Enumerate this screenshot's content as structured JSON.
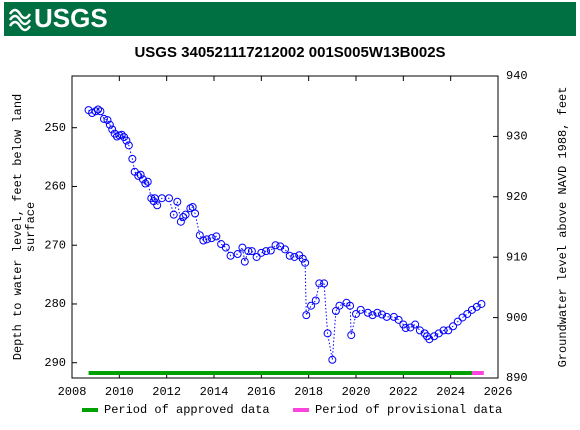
{
  "header": {
    "logo": "USGS"
  },
  "chart_data": {
    "type": "line",
    "title": "USGS 340521117212002 001S005W13B002S",
    "ylabel": [
      "Depth to water level, feet below land",
      "surface"
    ],
    "y2label": "Groundwater level above NAVD 1988, feet",
    "xlim": [
      2008,
      2026
    ],
    "xticks": [
      2008,
      2010,
      2012,
      2014,
      2016,
      2018,
      2020,
      2022,
      2024,
      2026
    ],
    "ylim": [
      241.2,
      292.6
    ],
    "y_inverted": true,
    "yticks": [
      250,
      260,
      270,
      280,
      290
    ],
    "y2lim": [
      890,
      940
    ],
    "y2ticks": [
      890,
      900,
      910,
      920,
      930,
      940
    ],
    "series": [
      {
        "name": "Depth to water level",
        "color": "#0000ff",
        "x": [
          2008.7,
          2008.85,
          2009.0,
          2009.1,
          2009.2,
          2009.35,
          2009.5,
          2009.6,
          2009.7,
          2009.8,
          2009.9,
          2010.0,
          2010.1,
          2010.2,
          2010.3,
          2010.4,
          2010.55,
          2010.65,
          2010.8,
          2010.9,
          2011.0,
          2011.1,
          2011.2,
          2011.35,
          2011.45,
          2011.5,
          2011.6,
          2011.8,
          2012.1,
          2012.3,
          2012.45,
          2012.6,
          2012.7,
          2012.8,
          2013.0,
          2013.1,
          2013.2,
          2013.4,
          2013.55,
          2013.7,
          2013.9,
          2014.1,
          2014.3,
          2014.5,
          2014.7,
          2015.0,
          2015.2,
          2015.3,
          2015.45,
          2015.6,
          2015.8,
          2016.0,
          2016.2,
          2016.4,
          2016.6,
          2016.8,
          2017.0,
          2017.2,
          2017.4,
          2017.6,
          2017.75,
          2017.85,
          2017.9,
          2018.1,
          2018.3,
          2018.45,
          2018.65,
          2018.8,
          2019.0,
          2019.15,
          2019.3,
          2019.6,
          2019.75,
          2019.8,
          2020.0,
          2020.2,
          2020.5,
          2020.7,
          2020.9,
          2021.1,
          2021.3,
          2021.6,
          2021.8,
          2022.0,
          2022.1,
          2022.3,
          2022.5,
          2022.7,
          2022.9,
          2023.0,
          2023.1,
          2023.3,
          2023.5,
          2023.7,
          2023.9,
          2024.1,
          2024.3,
          2024.5,
          2024.7,
          2024.9,
          2025.1,
          2025.3
        ],
        "values": [
          247.0,
          247.5,
          247.2,
          246.9,
          247.2,
          248.5,
          248.7,
          249.5,
          250.3,
          251.0,
          251.5,
          251.3,
          251.2,
          251.6,
          252.2,
          253.0,
          255.3,
          257.5,
          258.2,
          258.0,
          258.8,
          259.5,
          259.2,
          262.0,
          262.5,
          262.0,
          263.2,
          262.0,
          262.0,
          264.8,
          262.6,
          266.0,
          265.2,
          264.8,
          263.7,
          263.5,
          264.6,
          268.3,
          269.2,
          269.0,
          268.8,
          268.5,
          269.8,
          270.4,
          271.8,
          271.5,
          270.4,
          272.8,
          271.0,
          271.0,
          272.0,
          271.3,
          271.0,
          270.9,
          270.0,
          270.2,
          270.7,
          271.8,
          272.0,
          271.7,
          272.3,
          273.0,
          281.9,
          280.3,
          279.4,
          276.5,
          276.5,
          285.0,
          289.5,
          281.2,
          280.3,
          279.8,
          280.3,
          285.3,
          281.7,
          281.0,
          281.5,
          281.9,
          281.5,
          281.8,
          282.2,
          282.2,
          282.7,
          283.5,
          284.1,
          284.0,
          283.5,
          284.5,
          285.0,
          285.5,
          286.0,
          285.5,
          285.0,
          284.5,
          284.5,
          283.8,
          283.0,
          282.3,
          281.7,
          281.0,
          280.5,
          280.0
        ]
      }
    ],
    "periods": [
      {
        "name": "Period of approved data",
        "color": "#00a000",
        "start": 2008.7,
        "end": 2024.9
      },
      {
        "name": "Period of provisional data",
        "color": "#ff44dd",
        "start": 2024.9,
        "end": 2025.4
      }
    ]
  }
}
